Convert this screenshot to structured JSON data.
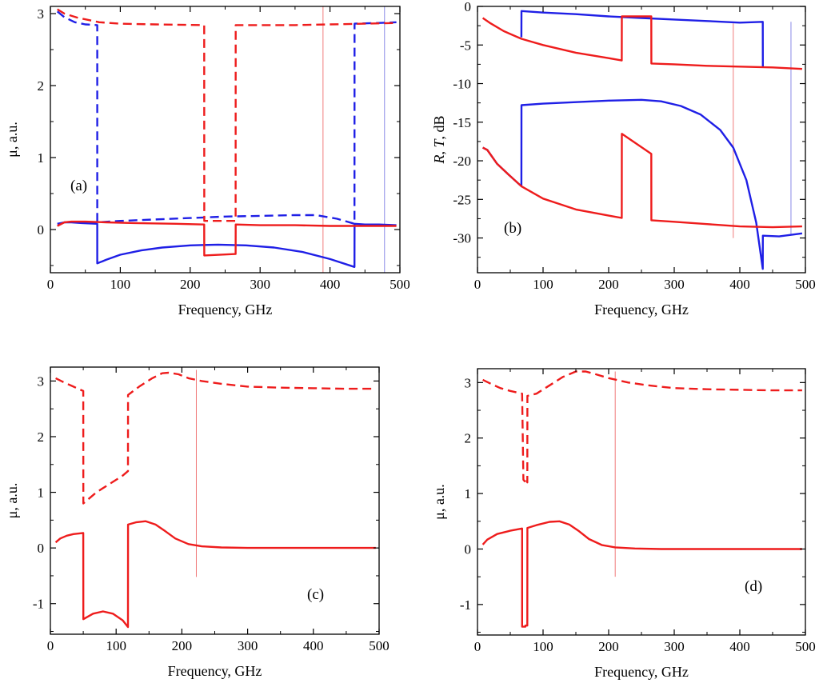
{
  "figure": {
    "colors": {
      "red": "#ee1c1c",
      "blue": "#1f1fe6",
      "marker_red": "#f07a7a",
      "marker_blue": "#8a8ae6"
    }
  },
  "chart_data": [
    {
      "id": "a",
      "type": "line",
      "panel_label": "(a)",
      "xlabel": "Frequency, GHz",
      "ylabel": "μ, a.u.",
      "xlim": [
        0,
        500
      ],
      "ylim": [
        -0.6,
        3.1
      ],
      "xticks": [
        0,
        100,
        200,
        300,
        400,
        500
      ],
      "xtick_labels": [
        "0",
        "100",
        "200",
        "300",
        "400",
        "500"
      ],
      "yticks": [
        0,
        1,
        2,
        3
      ],
      "ytick_labels": [
        "0",
        "1",
        "2",
        "3"
      ],
      "vlines": [
        {
          "x": 390,
          "y0": -0.6,
          "y1": 3.1,
          "color": "marker_red"
        },
        {
          "x": 478,
          "y0": -0.6,
          "y1": 3.1,
          "color": "marker_blue"
        }
      ],
      "series": [
        {
          "name": "blue-dashed",
          "color": "blue",
          "dash": true,
          "x": [
            10,
            20,
            35,
            50,
            67,
            67.1,
            100,
            150,
            200,
            250,
            300,
            350,
            380,
            410,
            435,
            435.1,
            470,
            495
          ],
          "y": [
            3.03,
            2.95,
            2.88,
            2.85,
            2.84,
            0.1,
            0.12,
            0.14,
            0.16,
            0.18,
            0.19,
            0.2,
            0.2,
            0.15,
            0.08,
            2.86,
            2.87,
            2.88
          ]
        },
        {
          "name": "red-dashed",
          "color": "red",
          "dash": true,
          "x": [
            10,
            20,
            40,
            70,
            100,
            150,
            220,
            220.1,
            265,
            265.1,
            300,
            350,
            400,
            450,
            495
          ],
          "y": [
            3.06,
            3.0,
            2.94,
            2.88,
            2.86,
            2.85,
            2.84,
            0.12,
            0.12,
            2.84,
            2.84,
            2.84,
            2.85,
            2.86,
            2.87
          ]
        },
        {
          "name": "blue-solid",
          "color": "blue",
          "dash": false,
          "x": [
            10,
            20,
            30,
            45,
            67,
            67.1,
            80,
            100,
            130,
            160,
            200,
            240,
            280,
            320,
            360,
            400,
            435,
            435.1,
            450,
            470,
            495
          ],
          "y": [
            0.08,
            0.1,
            0.1,
            0.09,
            0.08,
            -0.47,
            -0.42,
            -0.35,
            -0.29,
            -0.25,
            -0.22,
            -0.21,
            -0.22,
            -0.25,
            -0.31,
            -0.41,
            -0.52,
            0.08,
            0.07,
            0.07,
            0.06
          ]
        },
        {
          "name": "red-solid",
          "color": "red",
          "dash": false,
          "x": [
            10,
            20,
            30,
            50,
            80,
            120,
            180,
            220,
            220.1,
            265,
            265.1,
            300,
            350,
            400,
            450,
            495
          ],
          "y": [
            0.05,
            0.1,
            0.11,
            0.11,
            0.1,
            0.09,
            0.08,
            0.07,
            -0.36,
            -0.34,
            0.07,
            0.06,
            0.06,
            0.05,
            0.05,
            0.05
          ]
        }
      ]
    },
    {
      "id": "b",
      "type": "line",
      "panel_label": "(b)",
      "xlabel": "Frequency, GHz",
      "ylabel_parts": [
        "R",
        ", ",
        "T",
        ", dB"
      ],
      "xlim": [
        0,
        500
      ],
      "ylim": [
        -34.5,
        0
      ],
      "xticks": [
        0,
        100,
        200,
        300,
        400,
        500
      ],
      "xtick_labels": [
        "0",
        "100",
        "200",
        "300",
        "400",
        "500"
      ],
      "yticks": [
        0,
        -5,
        -10,
        -15,
        -20,
        -25,
        -30
      ],
      "ytick_labels": [
        "0",
        "-5",
        "-10",
        "-15",
        "-20",
        "-25",
        "-30"
      ],
      "vlines": [
        {
          "x": 390,
          "y0": -30,
          "y1": -2.2,
          "color": "marker_red"
        },
        {
          "x": 478,
          "y0": -29.5,
          "y1": -2.0,
          "color": "marker_blue"
        }
      ],
      "series": [
        {
          "name": "blue-R",
          "color": "blue",
          "dash": false,
          "x": [
            67,
            67.1,
            100,
            150,
            200,
            250,
            300,
            350,
            400,
            435,
            435.1
          ],
          "y": [
            -4.0,
            -0.6,
            -0.8,
            -1.0,
            -1.3,
            -1.5,
            -1.7,
            -1.9,
            -2.1,
            -2.0,
            -7.8
          ]
        },
        {
          "name": "red-R",
          "color": "red",
          "dash": false,
          "x": [
            8,
            20,
            40,
            67,
            100,
            150,
            200,
            220,
            220.1,
            265,
            265.1,
            300,
            350,
            400,
            450,
            495
          ],
          "y": [
            -1.5,
            -2.2,
            -3.2,
            -4.2,
            -5.0,
            -6.0,
            -6.7,
            -7.0,
            -1.3,
            -1.3,
            -7.4,
            -7.5,
            -7.7,
            -7.8,
            -7.9,
            -8.1
          ]
        },
        {
          "name": "blue-T",
          "color": "blue",
          "dash": false,
          "x": [
            8,
            15,
            30,
            50,
            67,
            67.1,
            100,
            150,
            200,
            250,
            280,
            310,
            340,
            370,
            390,
            410,
            425,
            435,
            435.1,
            460,
            495
          ],
          "y": [
            -18.3,
            -18.6,
            -20.4,
            -22.0,
            -23.3,
            -12.8,
            -12.6,
            -12.4,
            -12.2,
            -12.1,
            -12.3,
            -12.9,
            -14.0,
            -16.0,
            -18.3,
            -22.5,
            -28.0,
            -34.0,
            -29.7,
            -29.8,
            -29.4
          ]
        },
        {
          "name": "red-T",
          "color": "red",
          "dash": false,
          "x": [
            8,
            15,
            30,
            50,
            67,
            100,
            150,
            200,
            220,
            220.1,
            265,
            265.1,
            300,
            350,
            400,
            450,
            495
          ],
          "y": [
            -18.3,
            -18.6,
            -20.4,
            -22.0,
            -23.3,
            -24.9,
            -26.3,
            -27.1,
            -27.4,
            -16.5,
            -19.1,
            -27.7,
            -27.9,
            -28.2,
            -28.5,
            -28.6,
            -28.5
          ]
        }
      ]
    },
    {
      "id": "c",
      "type": "line",
      "panel_label": "(c)",
      "xlabel": "Frequency, GHz",
      "ylabel": "μ, a.u.",
      "xlim": [
        0,
        500
      ],
      "ylim": [
        -1.55,
        3.25
      ],
      "xticks": [
        0,
        100,
        200,
        300,
        400,
        500
      ],
      "xtick_labels": [
        "0",
        "100",
        "200",
        "300",
        "400",
        "500"
      ],
      "yticks": [
        -1,
        0,
        1,
        2,
        3
      ],
      "ytick_labels": [
        "-1",
        "0",
        "1",
        "2",
        "3"
      ],
      "vlines": [
        {
          "x": 222,
          "y0": -0.52,
          "y1": 3.2,
          "color": "marker_red"
        }
      ],
      "series": [
        {
          "name": "red-dashed",
          "color": "red",
          "dash": true,
          "x": [
            8,
            20,
            35,
            50,
            50.1,
            70,
            90,
            110,
            118,
            118.1,
            135,
            155,
            170,
            180,
            195,
            210,
            230,
            260,
            300,
            350,
            400,
            450,
            495
          ],
          "y": [
            3.05,
            2.98,
            2.9,
            2.82,
            0.8,
            1.0,
            1.15,
            1.3,
            1.38,
            2.75,
            2.9,
            3.05,
            3.14,
            3.15,
            3.12,
            3.05,
            3.0,
            2.95,
            2.9,
            2.88,
            2.87,
            2.86,
            2.86
          ]
        },
        {
          "name": "red-solid",
          "color": "red",
          "dash": false,
          "x": [
            8,
            15,
            25,
            35,
            50,
            50.1,
            65,
            80,
            95,
            110,
            118,
            118.1,
            130,
            145,
            160,
            175,
            190,
            210,
            230,
            260,
            300,
            400,
            495
          ],
          "y": [
            0.1,
            0.17,
            0.22,
            0.25,
            0.27,
            -1.28,
            -1.18,
            -1.14,
            -1.18,
            -1.3,
            -1.42,
            0.42,
            0.46,
            0.48,
            0.42,
            0.3,
            0.17,
            0.07,
            0.03,
            0.01,
            0.0,
            0.0,
            0.0
          ]
        }
      ]
    },
    {
      "id": "d",
      "type": "line",
      "panel_label": "(d)",
      "xlabel": "Frequency, GHz",
      "ylabel": "μ, a.u.",
      "xlim": [
        0,
        500
      ],
      "ylim": [
        -1.55,
        3.25
      ],
      "xticks": [
        0,
        100,
        200,
        300,
        400,
        500
      ],
      "xtick_labels": [
        "0",
        "100",
        "200",
        "300",
        "400",
        "500"
      ],
      "yticks": [
        -1,
        0,
        1,
        2,
        3
      ],
      "ytick_labels": [
        "-1",
        "0",
        "1",
        "2",
        "3"
      ],
      "vlines": [
        {
          "x": 210,
          "y0": -0.5,
          "y1": 3.2,
          "color": "marker_red"
        }
      ],
      "series": [
        {
          "name": "red-dashed",
          "color": "red",
          "dash": true,
          "x": [
            8,
            20,
            35,
            50,
            68,
            70,
            72,
            74,
            76,
            76.1,
            90,
            110,
            130,
            150,
            165,
            180,
            200,
            230,
            260,
            300,
            350,
            400,
            450,
            495
          ],
          "y": [
            3.05,
            2.98,
            2.9,
            2.85,
            2.8,
            1.25,
            1.22,
            1.28,
            1.2,
            2.76,
            2.8,
            2.95,
            3.1,
            3.2,
            3.2,
            3.15,
            3.08,
            3.0,
            2.95,
            2.9,
            2.88,
            2.87,
            2.86,
            2.86
          ]
        },
        {
          "name": "red-solid",
          "color": "red",
          "dash": false,
          "x": [
            8,
            15,
            30,
            50,
            68,
            68.1,
            73,
            73.1,
            76,
            76.1,
            90,
            110,
            125,
            140,
            155,
            170,
            190,
            210,
            240,
            280,
            350,
            495
          ],
          "y": [
            0.08,
            0.17,
            0.27,
            0.33,
            0.37,
            -1.4,
            -1.4,
            -1.38,
            -1.38,
            0.38,
            0.43,
            0.49,
            0.5,
            0.44,
            0.32,
            0.18,
            0.07,
            0.03,
            0.01,
            0.0,
            0.0,
            0.0
          ]
        }
      ]
    }
  ]
}
